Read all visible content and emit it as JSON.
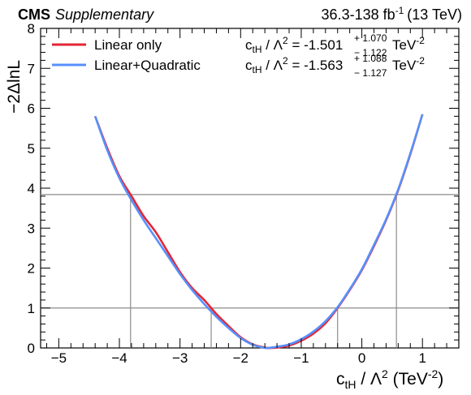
{
  "header": {
    "experiment": "CMS",
    "label": "Supplementary",
    "lumi_value": "36.3-138 fb",
    "lumi_exp": "-1",
    "energy": "(13 TeV)"
  },
  "colors": {
    "linear": "#e32636",
    "quadratic": "#5790fc",
    "threshold": "#8c8c8c"
  },
  "chart_data": {
    "type": "line",
    "xlabel": "c_tH / Λ² (TeV⁻²)",
    "ylabel": "−2ΔlnL",
    "xlim": [
      -5.3,
      1.6
    ],
    "ylim": [
      0,
      8
    ],
    "x_ticks": [
      -5,
      -4,
      -3,
      -2,
      -1,
      0,
      1
    ],
    "y_ticks": [
      0,
      1,
      2,
      3,
      4,
      5,
      6,
      7,
      8
    ],
    "grid": false,
    "legend_position": "top-left",
    "thresholds": [
      1.0,
      3.84
    ],
    "series": [
      {
        "name": "Linear only",
        "color": "#e32636",
        "x": [
          -4.4,
          -4.2,
          -4.0,
          -3.8,
          -3.6,
          -3.4,
          -3.2,
          -3.0,
          -2.8,
          -2.6,
          -2.4,
          -2.2,
          -2.0,
          -1.8,
          -1.6,
          -1.5,
          -1.4,
          -1.2,
          -1.0,
          -0.8,
          -0.6,
          -0.4,
          -0.2,
          0.0,
          0.2,
          0.4,
          0.6,
          0.8,
          1.0
        ],
        "y": [
          5.8,
          5.0,
          4.3,
          3.8,
          3.3,
          2.9,
          2.4,
          1.9,
          1.5,
          1.2,
          0.85,
          0.55,
          0.27,
          0.09,
          0.01,
          0.0,
          0.01,
          0.06,
          0.18,
          0.36,
          0.62,
          1.0,
          1.45,
          1.95,
          2.55,
          3.2,
          3.95,
          4.85,
          5.85
        ]
      },
      {
        "name": "Linear+Quadratic",
        "color": "#5790fc",
        "x": [
          -4.4,
          -4.2,
          -4.0,
          -3.8,
          -3.6,
          -3.4,
          -3.2,
          -3.0,
          -2.8,
          -2.6,
          -2.4,
          -2.2,
          -2.0,
          -1.8,
          -1.6,
          -1.5,
          -1.4,
          -1.2,
          -1.0,
          -0.8,
          -0.6,
          -0.4,
          -0.2,
          0.0,
          0.2,
          0.4,
          0.6,
          0.8,
          1.0
        ],
        "y": [
          5.8,
          4.95,
          4.25,
          3.7,
          3.2,
          2.75,
          2.3,
          1.85,
          1.45,
          1.1,
          0.78,
          0.5,
          0.25,
          0.08,
          0.0,
          0.01,
          0.03,
          0.09,
          0.22,
          0.41,
          0.67,
          1.02,
          1.47,
          1.97,
          2.58,
          3.22,
          3.97,
          4.87,
          5.85
        ]
      }
    ],
    "results": [
      {
        "series": "Linear only",
        "param": "c",
        "param_sub": "tH",
        "op": " / Λ",
        "op_sup": "2",
        "value": " = -1.501",
        "err_up": "+ 1.070",
        "err_down": "− 1.122",
        "unit": "TeV",
        "unit_sup": "-2"
      },
      {
        "series": "Linear+Quadratic",
        "param": "c",
        "param_sub": "tH",
        "op": " / Λ",
        "op_sup": "2",
        "value": " = -1.563",
        "err_up": "+ 1.088",
        "err_down": "− 1.127",
        "unit": "TeV",
        "unit_sup": "-2"
      }
    ]
  }
}
